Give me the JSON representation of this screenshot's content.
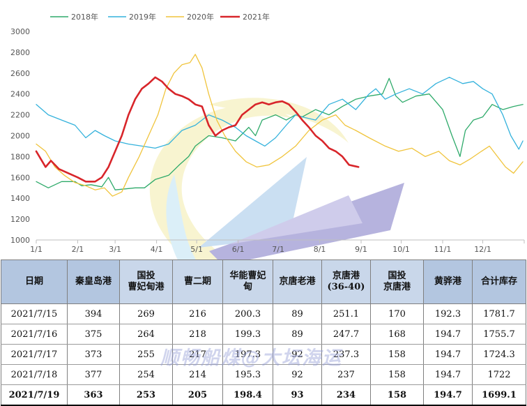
{
  "chart_data": {
    "type": "line",
    "x_ticks": [
      "1/1",
      "2/1",
      "3/1",
      "4/1",
      "5/1",
      "6/1",
      "7/1",
      "8/1",
      "9/1",
      "10/1",
      "11/1",
      "12/1"
    ],
    "y_ticks": [
      "1000",
      "1200",
      "1400",
      "1600",
      "1800",
      "2000",
      "2200",
      "2400",
      "2600",
      "2800",
      "3000"
    ],
    "ylim": [
      1000,
      3000
    ],
    "legend_position": "top",
    "series": [
      {
        "name": "2018年",
        "color": "#2eaa6a",
        "width": 1.3,
        "points": [
          [
            1,
            1560
          ],
          [
            10,
            1500
          ],
          [
            20,
            1560
          ],
          [
            30,
            1560
          ],
          [
            35,
            1520
          ],
          [
            42,
            1530
          ],
          [
            50,
            1510
          ],
          [
            55,
            1600
          ],
          [
            60,
            1480
          ],
          [
            68,
            1490
          ],
          [
            75,
            1500
          ],
          [
            82,
            1500
          ],
          [
            90,
            1580
          ],
          [
            100,
            1620
          ],
          [
            108,
            1720
          ],
          [
            115,
            1800
          ],
          [
            120,
            1900
          ],
          [
            125,
            1950
          ],
          [
            130,
            2000
          ],
          [
            140,
            1980
          ],
          [
            150,
            1950
          ],
          [
            160,
            2080
          ],
          [
            165,
            2000
          ],
          [
            170,
            2150
          ],
          [
            180,
            2200
          ],
          [
            188,
            2150
          ],
          [
            195,
            2200
          ],
          [
            200,
            2180
          ],
          [
            210,
            2250
          ],
          [
            220,
            2200
          ],
          [
            230,
            2280
          ],
          [
            240,
            2350
          ],
          [
            250,
            2380
          ],
          [
            260,
            2400
          ],
          [
            265,
            2550
          ],
          [
            270,
            2380
          ],
          [
            275,
            2320
          ],
          [
            285,
            2380
          ],
          [
            295,
            2400
          ],
          [
            305,
            2250
          ],
          [
            312,
            2000
          ],
          [
            318,
            1800
          ],
          [
            322,
            2050
          ],
          [
            328,
            2150
          ],
          [
            335,
            2180
          ],
          [
            342,
            2300
          ],
          [
            350,
            2250
          ],
          [
            358,
            2280
          ],
          [
            365,
            2300
          ]
        ]
      },
      {
        "name": "2019年",
        "color": "#34b2dc",
        "width": 1.3,
        "points": [
          [
            1,
            2300
          ],
          [
            10,
            2200
          ],
          [
            20,
            2150
          ],
          [
            30,
            2100
          ],
          [
            38,
            1980
          ],
          [
            45,
            2050
          ],
          [
            52,
            2000
          ],
          [
            60,
            1950
          ],
          [
            70,
            1920
          ],
          [
            80,
            1900
          ],
          [
            90,
            1880
          ],
          [
            100,
            1920
          ],
          [
            110,
            2050
          ],
          [
            120,
            2100
          ],
          [
            130,
            2200
          ],
          [
            140,
            2150
          ],
          [
            150,
            2080
          ],
          [
            158,
            2000
          ],
          [
            165,
            1950
          ],
          [
            172,
            1900
          ],
          [
            180,
            1980
          ],
          [
            188,
            2100
          ],
          [
            195,
            2200
          ],
          [
            200,
            2180
          ],
          [
            210,
            2150
          ],
          [
            220,
            2300
          ],
          [
            230,
            2350
          ],
          [
            240,
            2250
          ],
          [
            250,
            2400
          ],
          [
            255,
            2450
          ],
          [
            262,
            2350
          ],
          [
            270,
            2400
          ],
          [
            280,
            2450
          ],
          [
            290,
            2400
          ],
          [
            300,
            2500
          ],
          [
            310,
            2560
          ],
          [
            320,
            2500
          ],
          [
            328,
            2520
          ],
          [
            335,
            2450
          ],
          [
            342,
            2400
          ],
          [
            350,
            2200
          ],
          [
            356,
            2000
          ],
          [
            362,
            1870
          ],
          [
            365,
            1950
          ]
        ]
      },
      {
        "name": "2020年",
        "color": "#f0c43c",
        "width": 1.3,
        "points": [
          [
            1,
            1920
          ],
          [
            8,
            1850
          ],
          [
            15,
            1700
          ],
          [
            22,
            1620
          ],
          [
            30,
            1550
          ],
          [
            38,
            1520
          ],
          [
            45,
            1480
          ],
          [
            52,
            1500
          ],
          [
            58,
            1420
          ],
          [
            65,
            1460
          ],
          [
            70,
            1600
          ],
          [
            78,
            1800
          ],
          [
            85,
            2000
          ],
          [
            92,
            2200
          ],
          [
            98,
            2450
          ],
          [
            104,
            2600
          ],
          [
            110,
            2680
          ],
          [
            116,
            2700
          ],
          [
            120,
            2780
          ],
          [
            125,
            2650
          ],
          [
            130,
            2400
          ],
          [
            136,
            2150
          ],
          [
            142,
            2000
          ],
          [
            150,
            1850
          ],
          [
            158,
            1750
          ],
          [
            166,
            1700
          ],
          [
            175,
            1720
          ],
          [
            185,
            1800
          ],
          [
            195,
            1900
          ],
          [
            205,
            2050
          ],
          [
            215,
            2150
          ],
          [
            225,
            2200
          ],
          [
            232,
            2100
          ],
          [
            240,
            2050
          ],
          [
            250,
            1980
          ],
          [
            262,
            1900
          ],
          [
            272,
            1850
          ],
          [
            282,
            1880
          ],
          [
            292,
            1800
          ],
          [
            302,
            1850
          ],
          [
            310,
            1760
          ],
          [
            318,
            1720
          ],
          [
            326,
            1780
          ],
          [
            334,
            1850
          ],
          [
            340,
            1900
          ],
          [
            346,
            1800
          ],
          [
            352,
            1700
          ],
          [
            358,
            1640
          ],
          [
            365,
            1750
          ]
        ]
      },
      {
        "name": "2021年",
        "color": "#d8252a",
        "width": 2.6,
        "points": [
          [
            1,
            1850
          ],
          [
            8,
            1700
          ],
          [
            12,
            1760
          ],
          [
            18,
            1680
          ],
          [
            25,
            1640
          ],
          [
            32,
            1600
          ],
          [
            38,
            1560
          ],
          [
            45,
            1560
          ],
          [
            50,
            1600
          ],
          [
            55,
            1700
          ],
          [
            60,
            1850
          ],
          [
            65,
            2000
          ],
          [
            70,
            2200
          ],
          [
            75,
            2350
          ],
          [
            80,
            2450
          ],
          [
            85,
            2500
          ],
          [
            90,
            2560
          ],
          [
            95,
            2520
          ],
          [
            100,
            2450
          ],
          [
            105,
            2400
          ],
          [
            110,
            2380
          ],
          [
            115,
            2350
          ],
          [
            120,
            2300
          ],
          [
            125,
            2280
          ],
          [
            130,
            2100
          ],
          [
            135,
            2000
          ],
          [
            140,
            2050
          ],
          [
            145,
            2080
          ],
          [
            150,
            2100
          ],
          [
            155,
            2200
          ],
          [
            160,
            2250
          ],
          [
            165,
            2300
          ],
          [
            170,
            2320
          ],
          [
            175,
            2300
          ],
          [
            180,
            2320
          ],
          [
            185,
            2330
          ],
          [
            190,
            2300
          ],
          [
            195,
            2230
          ],
          [
            200,
            2150
          ],
          [
            205,
            2080
          ],
          [
            210,
            2000
          ],
          [
            215,
            1950
          ],
          [
            220,
            1880
          ],
          [
            225,
            1850
          ],
          [
            230,
            1800
          ],
          [
            235,
            1720
          ],
          [
            242,
            1700
          ]
        ]
      }
    ]
  },
  "table": {
    "headers": [
      "日期",
      "秦皇岛港",
      "国投\n曹妃甸港",
      "曹二期",
      "华能曹妃\n甸",
      "京唐老港",
      "京唐港\n(36-40)",
      "国投\n京唐港",
      "黄骅港",
      "合计库存"
    ],
    "rows": [
      [
        "2021/7/15",
        "394",
        "269",
        "216",
        "200.3",
        "89",
        "251.1",
        "170",
        "192.3",
        "1781.7"
      ],
      [
        "2021/7/16",
        "375",
        "264",
        "218",
        "199.3",
        "89",
        "247.7",
        "168",
        "194.7",
        "1755.7"
      ],
      [
        "2021/7/17",
        "373",
        "255",
        "217",
        "197.3",
        "92",
        "237.3",
        "158",
        "194.7",
        "1724.3"
      ],
      [
        "2021/7/18",
        "377",
        "254",
        "214",
        "195.3",
        "92",
        "237",
        "158",
        "194.7",
        "1722"
      ],
      [
        "2021/7/19",
        "363",
        "253",
        "205",
        "198.4",
        "93",
        "234",
        "158",
        "194.7",
        "1699.1"
      ]
    ]
  },
  "watermark": {
    "text": "顺畅船煤@大坛海运"
  }
}
